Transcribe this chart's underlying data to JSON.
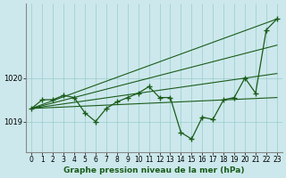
{
  "background_color": "#cce8ec",
  "grid_color": "#99cccc",
  "line_color": "#1a5c1a",
  "title": "Graphe pression niveau de la mer (hPa)",
  "xlim": [
    -0.5,
    23.5
  ],
  "ylim": [
    1018.3,
    1021.7
  ],
  "yticks": [
    1019,
    1020
  ],
  "xticks": [
    0,
    1,
    2,
    3,
    4,
    5,
    6,
    7,
    8,
    9,
    10,
    11,
    12,
    13,
    14,
    15,
    16,
    17,
    18,
    19,
    20,
    21,
    22,
    23
  ],
  "main_line": {
    "x": [
      0,
      1,
      2,
      3,
      4,
      5,
      6,
      7,
      8,
      9,
      10,
      11,
      12,
      13,
      14,
      15,
      16,
      17,
      18,
      19,
      20,
      21,
      22,
      23
    ],
    "y": [
      1019.3,
      1019.5,
      1019.5,
      1019.6,
      1019.55,
      1019.2,
      1019.0,
      1019.3,
      1019.45,
      1019.55,
      1019.65,
      1019.8,
      1019.55,
      1019.55,
      1018.75,
      1018.6,
      1019.1,
      1019.05,
      1019.5,
      1019.55,
      1020.0,
      1019.65,
      1021.1,
      1021.35
    ]
  },
  "fan_line1": {
    "x": [
      0,
      23
    ],
    "y": [
      1019.3,
      1019.55
    ]
  },
  "fan_line2": {
    "x": [
      0,
      23
    ],
    "y": [
      1019.3,
      1020.1
    ]
  },
  "fan_line3": {
    "x": [
      0,
      23
    ],
    "y": [
      1019.3,
      1020.75
    ]
  },
  "fan_line4": {
    "x": [
      0,
      23
    ],
    "y": [
      1019.3,
      1021.35
    ]
  }
}
